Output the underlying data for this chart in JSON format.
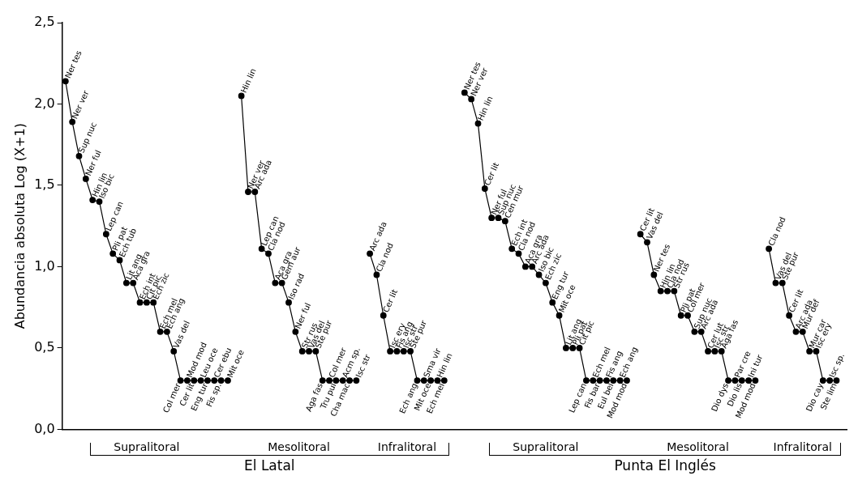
{
  "chart_data": {
    "type": "line",
    "ylabel": "Abundancia absoluta Log (X+1)",
    "categories": [
      null,
      null,
      null,
      null,
      null,
      null,
      null,
      null,
      null,
      null,
      null,
      null,
      null,
      null,
      null,
      null,
      null,
      null,
      null,
      null,
      null,
      null,
      null,
      null,
      null,
      null,
      null,
      null,
      null,
      null,
      null,
      null,
      null,
      null,
      null,
      null,
      null,
      null,
      null,
      null,
      null,
      null,
      null,
      null,
      null,
      null,
      null,
      null,
      null,
      null,
      null,
      null,
      null,
      null,
      null,
      null,
      null,
      null,
      null,
      null,
      null,
      null,
      null,
      null,
      null,
      null,
      null,
      null,
      null,
      null,
      null,
      null,
      null,
      null,
      null,
      null,
      null,
      null,
      null,
      null,
      null,
      null,
      null,
      null,
      null,
      null,
      null,
      null,
      null,
      null,
      null,
      null,
      null,
      null,
      null,
      null,
      null,
      null,
      null,
      null,
      null,
      null,
      null,
      null,
      null,
      null,
      null,
      null,
      null,
      null,
      null,
      null,
      null,
      null,
      null,
      null
    ],
    "series": [
      {
        "color": "#000000",
        "values": [
          2.14,
          1.89,
          1.68,
          1.54,
          1.41,
          1.4,
          1.2,
          1.08,
          1.04,
          0.9,
          0.9,
          0.78,
          0.78,
          0.78,
          0.6,
          0.6,
          0.48,
          0.3,
          0.3,
          0.3,
          0.3,
          0.3,
          0.3,
          0.3,
          0.3,
          null,
          null,
          null,
          null,
          null,
          null,
          null,
          null,
          null,
          null,
          null,
          null,
          null,
          null,
          null,
          null,
          null,
          null,
          null,
          null,
          null,
          null,
          null,
          null,
          null,
          null,
          null,
          null,
          null,
          null,
          null,
          null,
          null,
          null,
          null,
          null,
          null,
          null,
          null,
          null,
          null,
          null,
          null,
          null,
          null,
          null,
          null,
          null,
          null,
          null,
          null,
          null,
          null,
          null,
          null,
          null,
          null,
          null,
          null,
          null,
          null,
          null,
          null,
          null,
          null,
          null,
          null,
          null,
          null,
          null,
          null,
          null,
          null,
          null,
          null,
          null,
          null,
          null,
          null,
          null,
          null,
          null,
          null,
          null,
          null,
          null,
          null,
          null,
          null,
          null,
          null
        ],
        "value_labels": [
          "Ner tes",
          "Ner ver",
          "Sup nuc",
          "Ner ful",
          "Hin lin",
          "Iso bic",
          "Lep can",
          "Pli pat",
          "Ech tub",
          "Lit ang",
          "Aca gra",
          "Ech int",
          "Cit pic",
          "Ech zic",
          "Ech mel",
          "Ech ang",
          "Vas del",
          "Col mer",
          "Mod mod",
          "Cer lit",
          "Leu oce",
          "Eng tur",
          "Cer ebu",
          "Fis sp.",
          "Mit oce",
          null,
          null,
          null,
          null,
          null,
          null,
          null,
          null,
          null,
          null,
          null,
          null,
          null,
          null,
          null,
          null,
          null,
          null,
          null,
          null,
          null,
          null,
          null,
          null,
          null,
          null,
          null,
          null,
          null,
          null,
          null,
          null,
          null,
          null,
          null,
          null,
          null,
          null,
          null,
          null,
          null,
          null,
          null,
          null,
          null,
          null,
          null,
          null,
          null,
          null,
          null,
          null,
          null,
          null,
          null,
          null,
          null,
          null,
          null,
          null,
          null,
          null,
          null,
          null,
          null,
          null,
          null,
          null,
          null,
          null,
          null,
          null,
          null,
          null,
          null,
          null,
          null,
          null,
          null,
          null,
          null,
          null,
          null,
          null,
          null,
          null,
          null,
          null,
          null,
          null,
          null
        ]
      },
      {
        "color": "#000000",
        "values": [
          null,
          null,
          null,
          null,
          null,
          null,
          null,
          null,
          null,
          null,
          null,
          null,
          null,
          null,
          null,
          null,
          null,
          null,
          null,
          null,
          null,
          null,
          null,
          null,
          null,
          null,
          2.05,
          1.46,
          1.46,
          1.11,
          1.08,
          0.9,
          0.9,
          0.78,
          0.6,
          0.48,
          0.48,
          0.48,
          0.3,
          0.3,
          0.3,
          0.3,
          0.3,
          0.3,
          null,
          null,
          null,
          null,
          null,
          null,
          null,
          null,
          null,
          null,
          null,
          null,
          null,
          null,
          null,
          null,
          null,
          null,
          null,
          null,
          null,
          null,
          null,
          null,
          null,
          null,
          null,
          null,
          null,
          null,
          null,
          null,
          null,
          null,
          null,
          null,
          null,
          null,
          null,
          null,
          null,
          null,
          null,
          null,
          null,
          null,
          null,
          null,
          null,
          null,
          null,
          null,
          null,
          null,
          null,
          null,
          null,
          null,
          null,
          null,
          null,
          null,
          null,
          null,
          null,
          null,
          null,
          null,
          null,
          null,
          null,
          null
        ],
        "value_labels": [
          null,
          null,
          null,
          null,
          null,
          null,
          null,
          null,
          null,
          null,
          null,
          null,
          null,
          null,
          null,
          null,
          null,
          null,
          null,
          null,
          null,
          null,
          null,
          null,
          null,
          null,
          "Hin lin",
          "Ner ver",
          "Arc ada",
          "Lep can",
          "Cla nod",
          "Aca gra",
          "Gem aur",
          "Iso rad",
          "Ner ful",
          "Str rus",
          "Vas del",
          "Ste pur",
          "Aga fas",
          "Col mer",
          "Tru pul",
          "Acm sp.",
          "Cha mac",
          "Isc str",
          null,
          null,
          null,
          null,
          null,
          null,
          null,
          null,
          null,
          null,
          null,
          null,
          null,
          null,
          null,
          null,
          null,
          null,
          null,
          null,
          null,
          null,
          null,
          null,
          null,
          null,
          null,
          null,
          null,
          null,
          null,
          null,
          null,
          null,
          null,
          null,
          null,
          null,
          null,
          null,
          null,
          null,
          null,
          null,
          null,
          null,
          null,
          null,
          null,
          null,
          null,
          null,
          null,
          null,
          null,
          null,
          null,
          null,
          null,
          null,
          null,
          null,
          null,
          null,
          null,
          null,
          null,
          null,
          null,
          null,
          null,
          null
        ]
      },
      {
        "color": "#000000",
        "values": [
          null,
          null,
          null,
          null,
          null,
          null,
          null,
          null,
          null,
          null,
          null,
          null,
          null,
          null,
          null,
          null,
          null,
          null,
          null,
          null,
          null,
          null,
          null,
          null,
          null,
          null,
          null,
          null,
          null,
          null,
          null,
          null,
          null,
          null,
          null,
          null,
          null,
          null,
          null,
          null,
          null,
          null,
          null,
          null,
          null,
          1.08,
          0.95,
          0.7,
          0.48,
          0.48,
          0.48,
          0.48,
          0.3,
          0.3,
          0.3,
          0.3,
          0.3,
          null,
          null,
          null,
          null,
          null,
          null,
          null,
          null,
          null,
          null,
          null,
          null,
          null,
          null,
          null,
          null,
          null,
          null,
          null,
          null,
          null,
          null,
          null,
          null,
          null,
          null,
          null,
          null,
          null,
          null,
          null,
          null,
          null,
          null,
          null,
          null,
          null,
          null,
          null,
          null,
          null,
          null,
          null,
          null,
          null,
          null,
          null,
          null,
          null,
          null,
          null,
          null,
          null,
          null,
          null,
          null,
          null,
          null,
          null
        ],
        "value_labels": [
          null,
          null,
          null,
          null,
          null,
          null,
          null,
          null,
          null,
          null,
          null,
          null,
          null,
          null,
          null,
          null,
          null,
          null,
          null,
          null,
          null,
          null,
          null,
          null,
          null,
          null,
          null,
          null,
          null,
          null,
          null,
          null,
          null,
          null,
          null,
          null,
          null,
          null,
          null,
          null,
          null,
          null,
          null,
          null,
          null,
          "Arc ada",
          "Cla nod",
          "Cer lit",
          "Isc ery",
          "Fis ang",
          "Isc str",
          "Ste pur",
          "Ech ang",
          "Sma vir",
          "Mit oce",
          "Hin lin",
          "Ech mel",
          null,
          null,
          null,
          null,
          null,
          null,
          null,
          null,
          null,
          null,
          null,
          null,
          null,
          null,
          null,
          null,
          null,
          null,
          null,
          null,
          null,
          null,
          null,
          null,
          null,
          null,
          null,
          null,
          null,
          null,
          null,
          null,
          null,
          null,
          null,
          null,
          null,
          null,
          null,
          null,
          null,
          null,
          null,
          null,
          null,
          null,
          null,
          null,
          null,
          null,
          null,
          null,
          null,
          null,
          null,
          null,
          null,
          null,
          null
        ]
      },
      {
        "color": "#000000",
        "values": [
          null,
          null,
          null,
          null,
          null,
          null,
          null,
          null,
          null,
          null,
          null,
          null,
          null,
          null,
          null,
          null,
          null,
          null,
          null,
          null,
          null,
          null,
          null,
          null,
          null,
          null,
          null,
          null,
          null,
          null,
          null,
          null,
          null,
          null,
          null,
          null,
          null,
          null,
          null,
          null,
          null,
          null,
          null,
          null,
          null,
          null,
          null,
          null,
          null,
          null,
          null,
          null,
          null,
          null,
          null,
          null,
          null,
          null,
          null,
          2.07,
          2.03,
          1.88,
          1.48,
          1.3,
          1.3,
          1.28,
          1.11,
          1.08,
          1.0,
          1.0,
          0.95,
          0.9,
          0.78,
          0.7,
          0.5,
          0.5,
          0.5,
          0.3,
          0.3,
          0.3,
          0.3,
          0.3,
          0.3,
          0.3,
          null,
          null,
          null,
          null,
          null,
          null,
          null,
          null,
          null,
          null,
          null,
          null,
          null,
          null,
          null,
          null,
          null,
          null,
          null,
          null,
          null,
          null,
          null,
          null,
          null,
          null,
          null,
          null,
          null,
          null,
          null,
          null
        ],
        "value_labels": [
          null,
          null,
          null,
          null,
          null,
          null,
          null,
          null,
          null,
          null,
          null,
          null,
          null,
          null,
          null,
          null,
          null,
          null,
          null,
          null,
          null,
          null,
          null,
          null,
          null,
          null,
          null,
          null,
          null,
          null,
          null,
          null,
          null,
          null,
          null,
          null,
          null,
          null,
          null,
          null,
          null,
          null,
          null,
          null,
          null,
          null,
          null,
          null,
          null,
          null,
          null,
          null,
          null,
          null,
          null,
          null,
          null,
          null,
          null,
          "Ner tes",
          "Ner ver",
          "Hin lin",
          "Cer lit",
          "Ner ful",
          "Sup nuc",
          "Cen mur",
          "Ech int",
          "Cla nod",
          "Aca gra",
          "Arc ada",
          "Iso bic",
          "Ech zic",
          "Eng tur",
          "Mit oce",
          "Lit ang",
          "Pli pat",
          "Cit pic",
          "Lep can",
          "Ech mel",
          "Fis bar",
          "Fis ang",
          "Eul bel",
          "Ech ang",
          "Mod mod",
          null,
          null,
          null,
          null,
          null,
          null,
          null,
          null,
          null,
          null,
          null,
          null,
          null,
          null,
          null,
          null,
          null,
          null,
          null,
          null,
          null,
          null,
          null,
          null,
          null,
          null,
          null,
          null,
          null,
          null,
          null,
          null
        ]
      },
      {
        "color": "#000000",
        "values": [
          null,
          null,
          null,
          null,
          null,
          null,
          null,
          null,
          null,
          null,
          null,
          null,
          null,
          null,
          null,
          null,
          null,
          null,
          null,
          null,
          null,
          null,
          null,
          null,
          null,
          null,
          null,
          null,
          null,
          null,
          null,
          null,
          null,
          null,
          null,
          null,
          null,
          null,
          null,
          null,
          null,
          null,
          null,
          null,
          null,
          null,
          null,
          null,
          null,
          null,
          null,
          null,
          null,
          null,
          null,
          null,
          null,
          null,
          null,
          null,
          null,
          null,
          null,
          null,
          null,
          null,
          null,
          null,
          null,
          null,
          null,
          null,
          null,
          null,
          null,
          null,
          null,
          null,
          null,
          null,
          null,
          null,
          null,
          null,
          null,
          1.2,
          1.15,
          0.95,
          0.85,
          0.85,
          0.85,
          0.7,
          0.7,
          0.6,
          0.6,
          0.48,
          0.48,
          0.48,
          0.3,
          0.3,
          0.3,
          0.3,
          0.3,
          null,
          null,
          null,
          null,
          null,
          null,
          null,
          null,
          null,
          null,
          null,
          null,
          null
        ],
        "value_labels": [
          null,
          null,
          null,
          null,
          null,
          null,
          null,
          null,
          null,
          null,
          null,
          null,
          null,
          null,
          null,
          null,
          null,
          null,
          null,
          null,
          null,
          null,
          null,
          null,
          null,
          null,
          null,
          null,
          null,
          null,
          null,
          null,
          null,
          null,
          null,
          null,
          null,
          null,
          null,
          null,
          null,
          null,
          null,
          null,
          null,
          null,
          null,
          null,
          null,
          null,
          null,
          null,
          null,
          null,
          null,
          null,
          null,
          null,
          null,
          null,
          null,
          null,
          null,
          null,
          null,
          null,
          null,
          null,
          null,
          null,
          null,
          null,
          null,
          null,
          null,
          null,
          null,
          null,
          null,
          null,
          null,
          null,
          null,
          null,
          null,
          "Cer lit",
          "Vas del",
          "Ner tes",
          "Hin lin",
          "Cla nod",
          "Str rus",
          "Pli pat",
          "Col mer",
          "Sup nuc",
          "Arc ada",
          "Cer lut",
          "Isc str",
          "Aga fas",
          "Dio dys",
          "Par cre",
          "Dio lis",
          "Ini tur",
          "Mod mod",
          null,
          null,
          null,
          null,
          null,
          null,
          null,
          null,
          null,
          null,
          null,
          null,
          null
        ]
      },
      {
        "color": "#000000",
        "values": [
          null,
          null,
          null,
          null,
          null,
          null,
          null,
          null,
          null,
          null,
          null,
          null,
          null,
          null,
          null,
          null,
          null,
          null,
          null,
          null,
          null,
          null,
          null,
          null,
          null,
          null,
          null,
          null,
          null,
          null,
          null,
          null,
          null,
          null,
          null,
          null,
          null,
          null,
          null,
          null,
          null,
          null,
          null,
          null,
          null,
          null,
          null,
          null,
          null,
          null,
          null,
          null,
          null,
          null,
          null,
          null,
          null,
          null,
          null,
          null,
          null,
          null,
          null,
          null,
          null,
          null,
          null,
          null,
          null,
          null,
          null,
          null,
          null,
          null,
          null,
          null,
          null,
          null,
          null,
          null,
          null,
          null,
          null,
          null,
          null,
          null,
          null,
          null,
          null,
          null,
          null,
          null,
          null,
          null,
          null,
          null,
          null,
          null,
          null,
          null,
          null,
          null,
          null,
          null,
          1.11,
          0.9,
          0.9,
          0.7,
          0.6,
          0.6,
          0.48,
          0.48,
          0.3,
          0.3,
          0.3,
          null
        ],
        "value_labels": [
          null,
          null,
          null,
          null,
          null,
          null,
          null,
          null,
          null,
          null,
          null,
          null,
          null,
          null,
          null,
          null,
          null,
          null,
          null,
          null,
          null,
          null,
          null,
          null,
          null,
          null,
          null,
          null,
          null,
          null,
          null,
          null,
          null,
          null,
          null,
          null,
          null,
          null,
          null,
          null,
          null,
          null,
          null,
          null,
          null,
          null,
          null,
          null,
          null,
          null,
          null,
          null,
          null,
          null,
          null,
          null,
          null,
          null,
          null,
          null,
          null,
          null,
          null,
          null,
          null,
          null,
          null,
          null,
          null,
          null,
          null,
          null,
          null,
          null,
          null,
          null,
          null,
          null,
          null,
          null,
          null,
          null,
          null,
          null,
          null,
          null,
          null,
          null,
          null,
          null,
          null,
          null,
          null,
          null,
          null,
          null,
          null,
          null,
          null,
          null,
          null,
          null,
          null,
          null,
          "Cla nod",
          "Vas del",
          "Ste pur",
          "Cer lit",
          "Arc ada",
          "Mur def",
          "Mur car",
          "Isc ery",
          "Dio cay",
          "Isc sp.",
          "Ste lim",
          null
        ]
      }
    ],
    "ylim": [
      0,
      2.5
    ],
    "yticks": [
      {
        "value": 0,
        "label": "0,0"
      },
      {
        "value": 0.5,
        "label": "0,5"
      },
      {
        "value": 1,
        "label": "1,0"
      },
      {
        "value": 1.5,
        "label": "1,5"
      },
      {
        "value": 2,
        "label": "2,0"
      },
      {
        "value": 2.5,
        "label": "2,5"
      }
    ],
    "tick_labels": "y",
    "marker": "circle",
    "line_style": "solid",
    "annotations": [
      "Supralitoral",
      "Mesolitoral",
      "Infralitoral",
      "Supralitoral",
      "Mesolitoral",
      "Infralitoral",
      "El Latal",
      "Punta El Inglés"
    ]
  }
}
